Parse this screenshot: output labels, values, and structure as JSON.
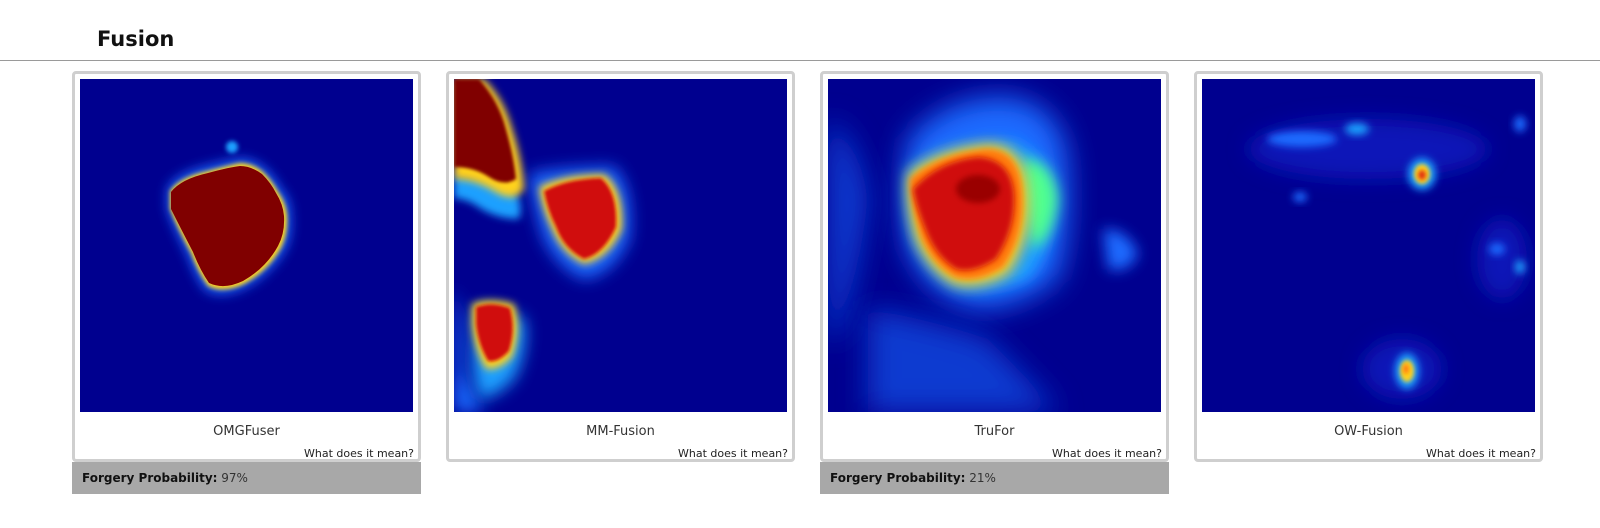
{
  "section": {
    "title": "Fusion"
  },
  "help_text": "What does it mean?",
  "probability_label": "Forgery Probability:",
  "cards": [
    {
      "name": "OMGFuser",
      "probability": "97%"
    },
    {
      "name": "MM-Fusion",
      "probability": null
    },
    {
      "name": "TruFor",
      "probability": "21%"
    },
    {
      "name": "OW-Fusion",
      "probability": null
    }
  ],
  "colors": {
    "heatmap_background": "#00008f",
    "heatmap_hot": "#800000",
    "prob_bar": "#a8a8a8",
    "card_border": "#cfcfcf"
  }
}
